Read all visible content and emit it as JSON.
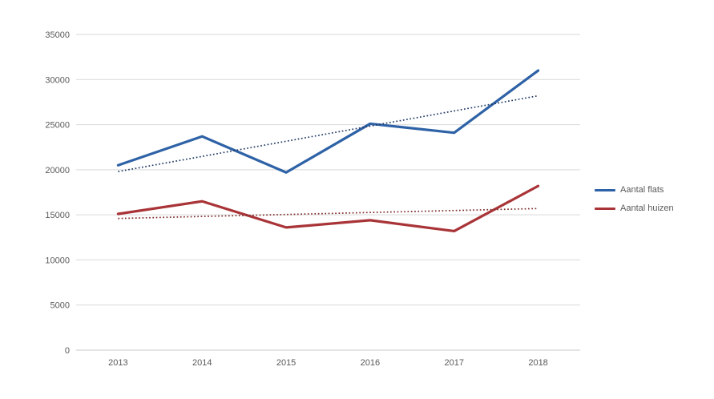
{
  "chart_data": {
    "type": "line",
    "title": "",
    "xlabel": "",
    "ylabel": "",
    "categories": [
      "2013",
      "2014",
      "2015",
      "2016",
      "2017",
      "2018"
    ],
    "series": [
      {
        "name": "Aantal flats",
        "values": [
          20500,
          23700,
          19700,
          25100,
          24100,
          31000
        ],
        "color": "#2E62A6",
        "trendline": {
          "start": 19800,
          "end": 28200,
          "color": "#1F3864",
          "style": "dotted"
        }
      },
      {
        "name": "Aantal huizen",
        "values": [
          15100,
          16500,
          13600,
          14400,
          13200,
          18200
        ],
        "color": "#A93438",
        "trendline": {
          "start": 14600,
          "end": 15700,
          "color": "#7D2B2B",
          "style": "dotted"
        }
      }
    ],
    "ylim": [
      0,
      35000
    ],
    "ytick_step": 5000,
    "ytick_labels": [
      "0",
      "5000",
      "10000",
      "15000",
      "20000",
      "25000",
      "30000",
      "35000"
    ],
    "grid": true,
    "legend_position": "right"
  },
  "styles": {
    "grid_color": "#D9D9D9",
    "baseline_color": "#C9C9C9",
    "label_color": "#595959",
    "background": "#FFFFFF"
  }
}
